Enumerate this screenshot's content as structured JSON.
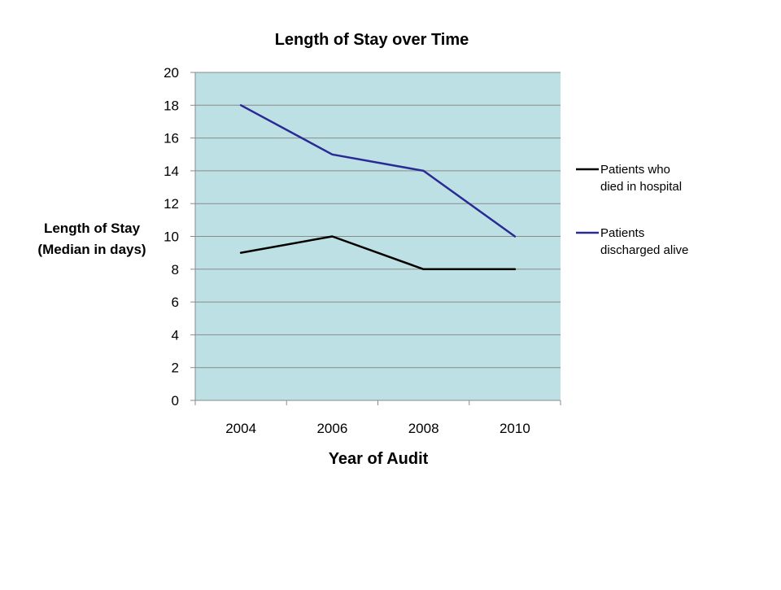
{
  "chart_data": {
    "type": "line",
    "title": "Length of Stay over Time",
    "xlabel": "Year of Audit",
    "ylabel_lines": [
      "Length of Stay",
      "(Median in days)"
    ],
    "categories": [
      "2004",
      "2006",
      "2008",
      "2010"
    ],
    "ylim": [
      0,
      20
    ],
    "yticks": [
      "0",
      "2",
      "4",
      "6",
      "8",
      "10",
      "12",
      "14",
      "16",
      "18",
      "20"
    ],
    "grid": true,
    "legend_position": "right",
    "plot_background": "#BDE0E4",
    "series": [
      {
        "name_lines": [
          "Patients who",
          "died in hospital"
        ],
        "color": "#000000",
        "values": [
          9,
          10,
          8,
          8
        ]
      },
      {
        "name_lines": [
          "Patients",
          "discharged alive"
        ],
        "color": "#2A2A96",
        "values": [
          18,
          15,
          14,
          10
        ]
      }
    ]
  }
}
